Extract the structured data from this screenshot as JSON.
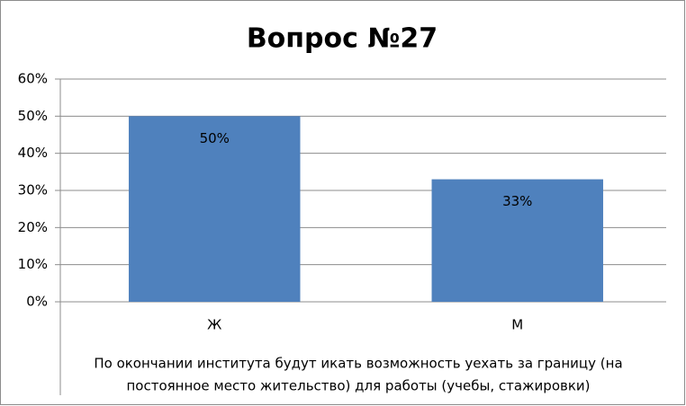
{
  "chart_data": {
    "type": "bar",
    "title": "Вопрос №27",
    "categories": [
      "Ж",
      "М"
    ],
    "values": [
      50,
      33
    ],
    "value_labels": [
      "50%",
      "33%"
    ],
    "color": "#4f81bd",
    "xlabel": [
      "По окончании  института   будут икать возможность уехать за границу  (на",
      "постоянное место жительство) для работы (учебы, стажировки)"
    ],
    "ylim": [
      0,
      60
    ],
    "yticks": [
      {
        "value": 0,
        "label": "0%"
      },
      {
        "value": 10,
        "label": "10%"
      },
      {
        "value": 20,
        "label": "20%"
      },
      {
        "value": 30,
        "label": "30%"
      },
      {
        "value": 40,
        "label": "40%"
      },
      {
        "value": 50,
        "label": "50%"
      },
      {
        "value": 60,
        "label": "60%"
      }
    ],
    "grid": true
  }
}
